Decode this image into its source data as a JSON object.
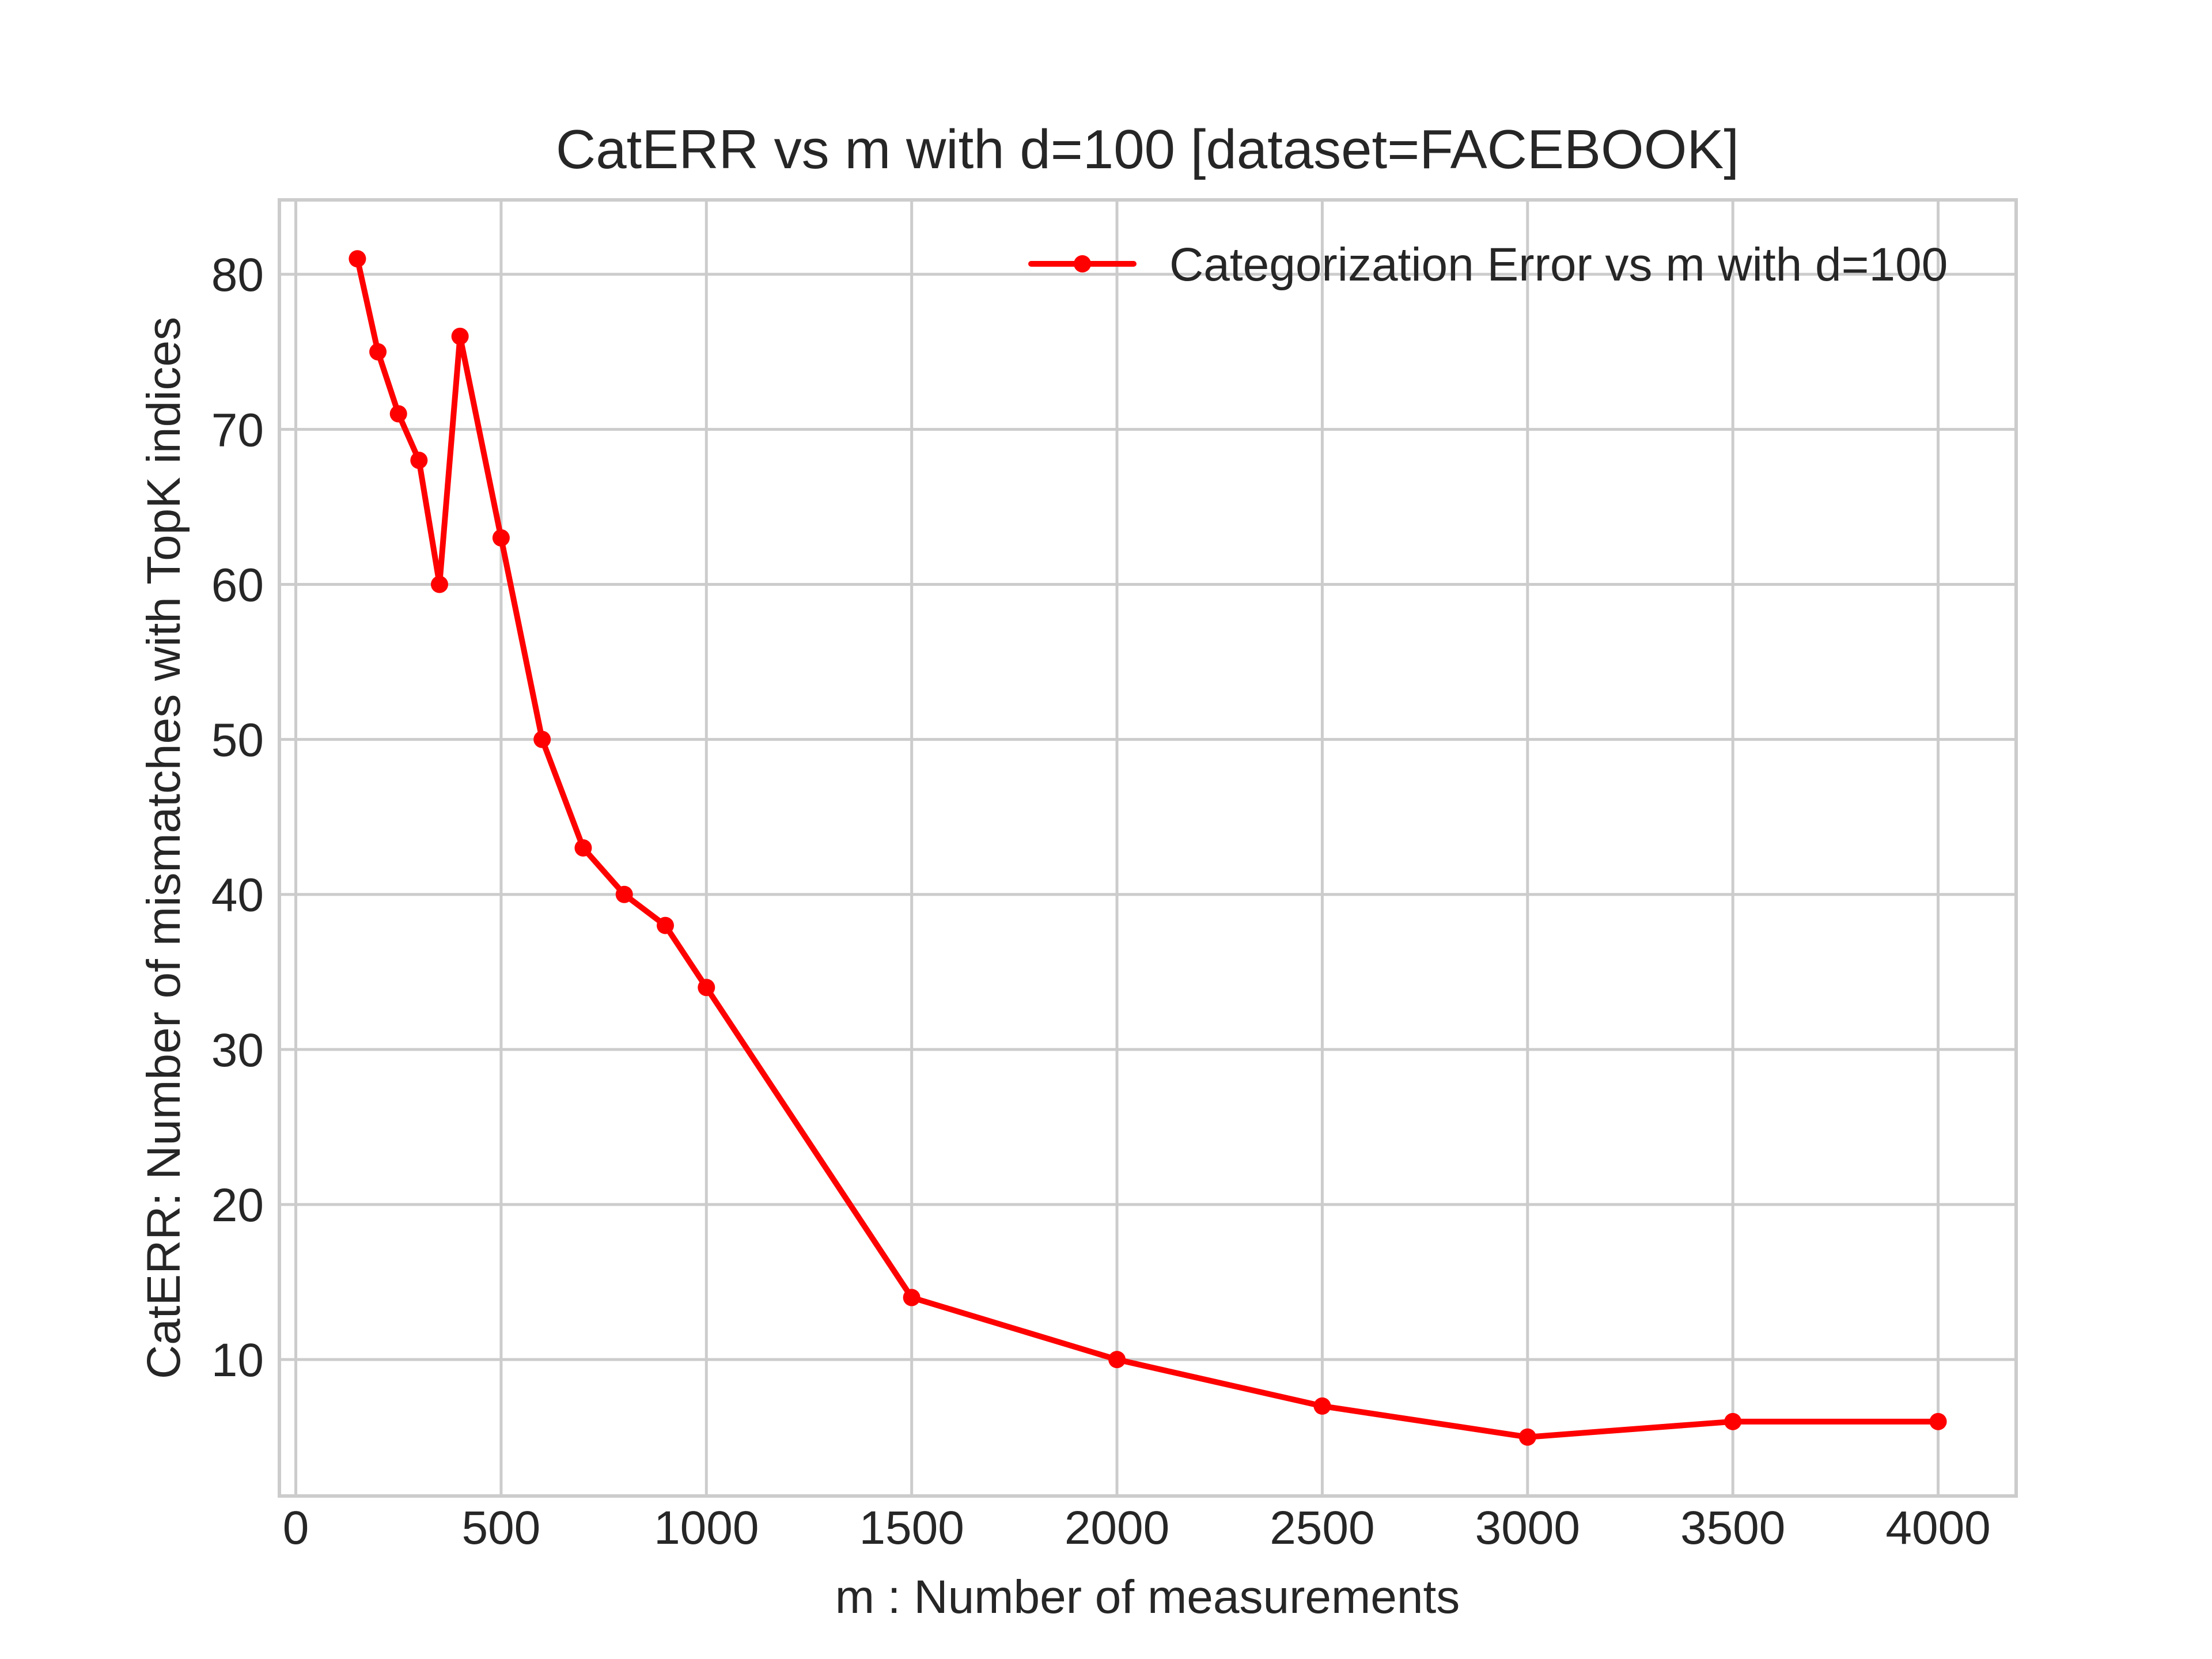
{
  "chart_data": {
    "type": "line",
    "title": "CatERR vs m with d=100 [dataset=FACEBOOK]",
    "xlabel": "m : Number of measurements",
    "ylabel": "CatERR: Number of mismatches with TopK indices",
    "xlim": [
      -40,
      4190
    ],
    "ylim": [
      1.2,
      84.8
    ],
    "xticks": [
      0,
      500,
      1000,
      1500,
      2000,
      2500,
      3000,
      3500,
      4000
    ],
    "yticks": [
      10,
      20,
      30,
      40,
      50,
      60,
      70,
      80
    ],
    "grid": true,
    "legend_position": "upper right",
    "series": [
      {
        "name": "Categorization Error vs m with d=100",
        "color": "#ff0000",
        "marker": "circle",
        "x": [
          150,
          200,
          250,
          300,
          350,
          400,
          500,
          600,
          700,
          800,
          900,
          1000,
          1500,
          2000,
          2500,
          3000,
          3500,
          4000
        ],
        "y": [
          81,
          75,
          71,
          68,
          60,
          76,
          63,
          50,
          43,
          40,
          38,
          34,
          14,
          10,
          7,
          5,
          6,
          6
        ]
      }
    ]
  }
}
